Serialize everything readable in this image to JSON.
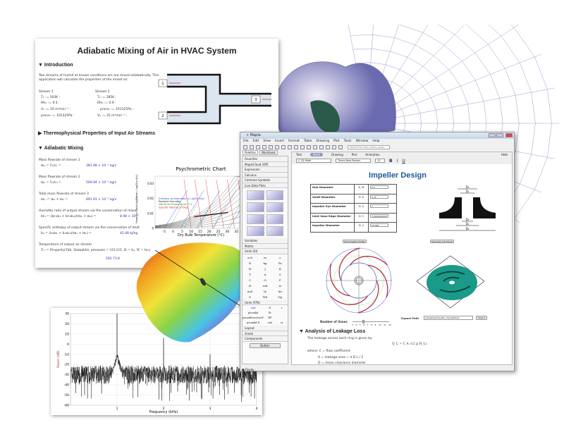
{
  "document": {
    "title": "Adiabatic Mixing of Air in HVAC System",
    "sections": {
      "intro": "Introduction",
      "thermo": "Thermophysical Properties of Input Air Streams",
      "mixing": "Adiabatic Mixing"
    },
    "intro_text": [
      "Two streams of humid at known conditions are are mixed adiabatically. This",
      "application will calculate the properties of the mixed air."
    ],
    "stream1": {
      "label": "Stream 1",
      "lines": [
        "T₁ := 303K :",
        "RH₁ := 0.4 :",
        "V₁ := 20 m³min⁻¹ :",
        "press₁ := 101325Pa :"
      ]
    },
    "stream2": {
      "label": "Stream 2",
      "lines": [
        "T₂ := 285K :",
        "RH₂ := 0.9 :",
        "press₂ := 101325Pa :",
        "V₂ := 25 m³min⁻¹ :"
      ]
    },
    "diagram_labels": [
      "1",
      "2",
      "3"
    ],
    "mixing_items": [
      {
        "label": "Mass flowrate of stream 1",
        "eq": "m₁ = V₁/v₁ =",
        "res": "381.98 × 10⁻³ kg/s"
      },
      {
        "label": "Mass flowrate of stream 2",
        "eq": "m₂ = V₂/v₂ =",
        "res": "509.94 × 10⁻³ kg/s"
      },
      {
        "label": "Total mass flowrate of stream 3",
        "eq": "m₃ := m₁ + m₂ =",
        "res": "891.91 × 10⁻³ kg/s"
      },
      {
        "label": "Humidity ratio of output stream via the conservation of mass",
        "eq": "hr₃ = (hr₁m₁ + hr₂m₂)/(m₁ + m₂) =",
        "res": "8.98 × 10⁻³"
      },
      {
        "label": "Specific enthalpy of output stream via the conservation of heat",
        "eq": "h₃ = (h₁m₁ + h₂m₂)/(m₁ + m₂) =",
        "res": "42.48 kJ/kg"
      },
      {
        "label": "Temperature of output air stream",
        "eq": "T₃ := Property(Tdb, HumidAir, pressure = 101325, H = h₃, W = hr₃)",
        "res": "292.73 K"
      }
    ]
  },
  "psychrometric_chart": {
    "title": "Psychrometric Chart",
    "xlabel": "Dry Bulb Temperature (°C)",
    "ylabel": "Humidity Ratio (kg(Water) / kg(Dry Air))",
    "xticks": [
      "-5",
      "0",
      "5",
      "10",
      "15",
      "20",
      "25",
      "30",
      "35",
      "40"
    ],
    "yticks": [
      "0",
      "0.01",
      "0.02",
      "0.03"
    ],
    "legend": [
      "Enthalpy at Saturation (J / g(Dry Air))",
      "Relative Humidity",
      "Wet Bulb Temperature (°C)",
      "Specific Volume (m³/kg)"
    ],
    "legend_colors": [
      "#3344cc",
      "#222222",
      "#229922",
      "#cc2222"
    ]
  },
  "maple": {
    "title": "Maple",
    "menu": [
      "File",
      "Edit",
      "View",
      "Insert",
      "Format",
      "Table",
      "Drawing",
      "Plot",
      "Tools",
      "Window",
      "Help"
    ],
    "search_placeholder": "Search for help, tasks, apps...",
    "palette_tabs": [
      "Palettes",
      "Workbook"
    ],
    "palettes_top": [
      "Favorites",
      "MapleCloud (Off)",
      "Expression",
      "Calculus",
      "Common Symbols",
      "Live Data Plots"
    ],
    "palettes_mid": [
      "Variables",
      "Matrix",
      "Units (SI)"
    ],
    "units_si": [
      "unit",
      "m",
      "s",
      "N",
      "kg",
      "Pa",
      "W",
      "J",
      "K",
      "T",
      "A",
      "V",
      "C",
      "Ω",
      "F",
      "H",
      "rad",
      "sr",
      "mol",
      "lx",
      "lm",
      "S",
      "Wb",
      "Np"
    ],
    "units_fps_header": "Units (FPS)",
    "units_fps": [
      "unit",
      "ft",
      "s",
      "poundal",
      "lb",
      "",
      "poundforce/inch²",
      "HP",
      "",
      "poundal ft",
      "rad",
      "sr"
    ],
    "palettes_bottom": [
      "Layout",
      "Greek",
      "Components"
    ],
    "component_button": "Button",
    "status": "Ready",
    "content_tabs": [
      "Text",
      "Math",
      "Drawing",
      "Plot",
      "Animation"
    ],
    "active_tab": "Math",
    "hide": "Hide",
    "style_select": "C  2D Math",
    "font_select": "Times New Roman",
    "size_select": "12",
    "doc_title": "Impeller Design",
    "rows": [
      {
        "name": "Hub Diameter",
        "sym": "D_H",
        "value": "2.5"
      },
      {
        "name": "Shaft Diameter",
        "sym": "D_S",
        "value": "1.75"
      },
      {
        "name": "Impeller Eye Diameter",
        "sym": "D_0",
        "value": "7"
      },
      {
        "name": "Inlet Vane Edge Diameter",
        "sym": "D_1",
        "value": "7.5222222222"
      },
      {
        "name": "Impeller Diameter",
        "sym": "D_2",
        "value": "13.444"
      }
    ],
    "drawing_labels": [
      "D₀",
      "D₁",
      "D₂",
      "Dₕ",
      "Dₛ"
    ],
    "plot_button": "Plot Impeller Profile",
    "model_button": "Generate 3-D Model",
    "vanes_label": "Number of Vanes",
    "vanes_ticks": [
      "3",
      "4",
      "5",
      "6",
      "7",
      "8",
      "9",
      "10",
      "11",
      "12"
    ],
    "vanes_value": 6,
    "export_label": "Export Path",
    "export_value": "y\\Desktop\\Impeller_3lyOqZeF.stl",
    "export_button": "Export",
    "leakage_title": "Analysis of Leakage Loss",
    "leakage_text": "The leakage across each ring is given by",
    "leakage_eq": "Q_L = C A √(2 g H_L)",
    "where": [
      "where: C = flow coefficient",
      "A = leakage area = π D L / 2",
      "D = mean clearance diameter"
    ],
    "impeller_color": "#1a9a88"
  },
  "spectrum": {
    "xlabel": "Frequency (kHz)",
    "ylabel": "Power (dB)",
    "xticks": [
      "1",
      "2",
      "3",
      "4"
    ],
    "yticks": [
      "30",
      "20",
      "10",
      "0",
      "-10",
      "-20",
      "-30",
      "-40",
      "-50",
      "-60"
    ]
  }
}
